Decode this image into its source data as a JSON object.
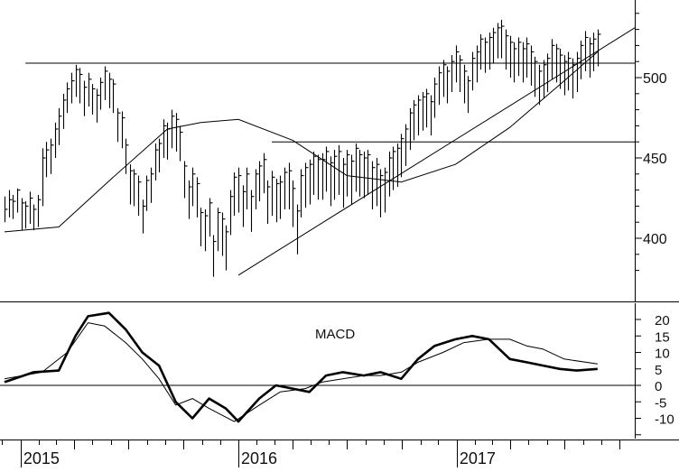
{
  "chart_data": [
    {
      "type": "ohlc",
      "title": "",
      "xlabel": "",
      "ylabel": "",
      "x_tick_labels": [
        "2015",
        "2016",
        "2017"
      ],
      "y_ticks": [
        400,
        450,
        500
      ],
      "y_tick_labels": [
        "400",
        "450",
        "500"
      ],
      "ylim": [
        360,
        550
      ],
      "grid": false,
      "series": [
        {
          "kind": "weekly_bars",
          "x": [
            "2014-12-05",
            "2014-12-12",
            "2014-12-19",
            "2014-12-26",
            "2015-01-02",
            "2015-01-09",
            "2015-01-16",
            "2015-01-23",
            "2015-01-30",
            "2015-02-06",
            "2015-02-13",
            "2015-02-20",
            "2015-02-27",
            "2015-03-06",
            "2015-03-13",
            "2015-03-20",
            "2015-03-27",
            "2015-04-03",
            "2015-04-10",
            "2015-04-17",
            "2015-04-24",
            "2015-05-01",
            "2015-05-08",
            "2015-05-15",
            "2015-05-22",
            "2015-05-29",
            "2015-06-05",
            "2015-06-12",
            "2015-06-19",
            "2015-06-26",
            "2015-07-03",
            "2015-07-10",
            "2015-07-17",
            "2015-07-24",
            "2015-07-31",
            "2015-08-07",
            "2015-08-14",
            "2015-08-21",
            "2015-08-28",
            "2015-09-04",
            "2015-09-11",
            "2015-09-18",
            "2015-09-25",
            "2015-10-02",
            "2015-10-09",
            "2015-10-16",
            "2015-10-23",
            "2015-10-30",
            "2015-11-06",
            "2015-11-13",
            "2015-11-20",
            "2015-11-27",
            "2015-12-04",
            "2015-12-11",
            "2015-12-18",
            "2015-12-25",
            "2016-01-01",
            "2016-01-08",
            "2016-01-15",
            "2016-01-22",
            "2016-01-29",
            "2016-02-05",
            "2016-02-12",
            "2016-02-19",
            "2016-02-26",
            "2016-03-04",
            "2016-03-11",
            "2016-03-18",
            "2016-03-25",
            "2016-04-01",
            "2016-04-08",
            "2016-04-15",
            "2016-04-22",
            "2016-04-29",
            "2016-05-06",
            "2016-05-13",
            "2016-05-20",
            "2016-05-27",
            "2016-06-03",
            "2016-06-10",
            "2016-06-17",
            "2016-06-24",
            "2016-07-01",
            "2016-07-08",
            "2016-07-15",
            "2016-07-22",
            "2016-07-29",
            "2016-08-05",
            "2016-08-12",
            "2016-08-19",
            "2016-08-26",
            "2016-09-02",
            "2016-09-09",
            "2016-09-16",
            "2016-09-23",
            "2016-09-30",
            "2016-10-07",
            "2016-10-14",
            "2016-10-21",
            "2016-10-28",
            "2016-11-04",
            "2016-11-11",
            "2016-11-18",
            "2016-11-25",
            "2016-12-02",
            "2016-12-09",
            "2016-12-16",
            "2016-12-23",
            "2016-12-30",
            "2017-01-06",
            "2017-01-13",
            "2017-01-20",
            "2017-01-27",
            "2017-02-03",
            "2017-02-10",
            "2017-02-17",
            "2017-02-24",
            "2017-03-03",
            "2017-03-10",
            "2017-03-17",
            "2017-03-24",
            "2017-03-31",
            "2017-04-07",
            "2017-04-14",
            "2017-04-21",
            "2017-04-28",
            "2017-05-05",
            "2017-05-12",
            "2017-05-19",
            "2017-05-26",
            "2017-06-02",
            "2017-06-09",
            "2017-06-16",
            "2017-06-23",
            "2017-06-30",
            "2017-07-07",
            "2017-07-14",
            "2017-07-21",
            "2017-07-28",
            "2017-08-04",
            "2017-08-11",
            "2017-08-18",
            "2017-08-25"
          ],
          "close": [
            418,
            424,
            423,
            430,
            422,
            420,
            425,
            418,
            424,
            450,
            455,
            458,
            468,
            476,
            486,
            493,
            498,
            505,
            502,
            494,
            499,
            493,
            489,
            497,
            504,
            499,
            496,
            478,
            475,
            458,
            442,
            440,
            435,
            420,
            436,
            440,
            455,
            459,
            470,
            468,
            476,
            474,
            466,
            445,
            432,
            440,
            434,
            416,
            414,
            422,
            398,
            416,
            412,
            404,
            426,
            438,
            439,
            429,
            440,
            426,
            440,
            445,
            449,
            432,
            438,
            434,
            435,
            441,
            442,
            431,
            417,
            439,
            444,
            446,
            451,
            449,
            449,
            454,
            447,
            451,
            454,
            446,
            452,
            448,
            456,
            452,
            450,
            452,
            444,
            446,
            439,
            441,
            450,
            454,
            456,
            462,
            468,
            478,
            483,
            486,
            488,
            490,
            485,
            496,
            503,
            508,
            504,
            510,
            516,
            511,
            504,
            498,
            512,
            516,
            524,
            522,
            525,
            528,
            531,
            532,
            526,
            522,
            518,
            522,
            518,
            521,
            516,
            510,
            504,
            508,
            512,
            520,
            518,
            514,
            510,
            512,
            508,
            512,
            520,
            525,
            521,
            524,
            527
          ],
          "high": [
            426,
            430,
            427,
            431,
            425,
            423,
            429,
            421,
            427,
            456,
            460,
            462,
            472,
            481,
            490,
            497,
            503,
            508,
            506,
            498,
            503,
            496,
            493,
            500,
            507,
            503,
            499,
            481,
            479,
            462,
            446,
            443,
            439,
            424,
            439,
            444,
            459,
            462,
            474,
            472,
            480,
            478,
            470,
            448,
            436,
            444,
            438,
            419,
            418,
            425,
            402,
            419,
            416,
            408,
            430,
            441,
            444,
            433,
            444,
            430,
            443,
            448,
            453,
            436,
            442,
            437,
            439,
            444,
            447,
            436,
            421,
            443,
            447,
            449,
            454,
            452,
            453,
            457,
            451,
            455,
            458,
            450,
            455,
            452,
            459,
            455,
            454,
            455,
            448,
            450,
            443,
            444,
            454,
            457,
            459,
            465,
            471,
            481,
            486,
            489,
            491,
            493,
            489,
            500,
            507,
            511,
            507,
            514,
            520,
            514,
            508,
            501,
            516,
            520,
            527,
            525,
            528,
            531,
            534,
            536,
            530,
            526,
            522,
            525,
            522,
            525,
            520,
            513,
            508,
            511,
            515,
            524,
            521,
            518,
            514,
            516,
            512,
            516,
            523,
            529,
            525,
            528,
            530
          ],
          "low": [
            410,
            413,
            412,
            416,
            405,
            406,
            409,
            405,
            407,
            420,
            438,
            440,
            450,
            458,
            468,
            478,
            484,
            488,
            484,
            476,
            482,
            477,
            472,
            480,
            486,
            481,
            478,
            460,
            456,
            440,
            421,
            420,
            414,
            403,
            417,
            422,
            436,
            441,
            450,
            449,
            456,
            454,
            448,
            425,
            412,
            420,
            413,
            395,
            392,
            401,
            376,
            392,
            389,
            380,
            402,
            414,
            416,
            407,
            418,
            404,
            418,
            423,
            428,
            409,
            414,
            410,
            412,
            418,
            418,
            407,
            390,
            413,
            419,
            421,
            427,
            424,
            424,
            429,
            420,
            424,
            427,
            419,
            426,
            421,
            429,
            426,
            425,
            427,
            418,
            420,
            413,
            416,
            426,
            430,
            432,
            438,
            445,
            455,
            461,
            464,
            467,
            469,
            464,
            475,
            483,
            488,
            484,
            491,
            497,
            491,
            484,
            478,
            492,
            497,
            505,
            503,
            505,
            509,
            512,
            512,
            505,
            500,
            497,
            501,
            497,
            500,
            495,
            488,
            483,
            487,
            491,
            499,
            497,
            493,
            489,
            492,
            487,
            491,
            499,
            504,
            500,
            504,
            507
          ]
        },
        {
          "name": "",
          "kind": "moving_average",
          "x": [
            "2014-12-05",
            "2015-03-06",
            "2015-06-05",
            "2015-09-04",
            "2015-10-30",
            "2016-01-01",
            "2016-04-01",
            "2016-07-01",
            "2016-09-30",
            "2016-12-30",
            "2017-03-31",
            "2017-06-30",
            "2017-08-25"
          ],
          "values": [
            404,
            407,
            438,
            468,
            472,
            474,
            461,
            439,
            435,
            446,
            469,
            498,
            516
          ]
        }
      ],
      "annotations": [
        {
          "kind": "horizontal_line",
          "value": 509,
          "from": "2015-01-09",
          "to": "2017-08-25"
        },
        {
          "kind": "horizontal_line",
          "value": 460,
          "from": "2016-02-26",
          "to": "2017-08-25"
        },
        {
          "kind": "trendline",
          "from": [
            "2016-01-01",
            377
          ],
          "to": [
            "2017-08-25",
            531
          ]
        }
      ]
    },
    {
      "type": "line",
      "title": "",
      "label": "MACD",
      "xlabel": "",
      "ylabel": "",
      "x_tick_labels": [
        "2015",
        "2016",
        "2017"
      ],
      "y_ticks": [
        -10,
        -5,
        0,
        5,
        10,
        15,
        20
      ],
      "y_tick_labels": [
        "-10",
        "-5",
        "0",
        "5",
        "10",
        "15",
        "20"
      ],
      "ylim": [
        -16,
        25
      ],
      "zero_line": true,
      "grid": false,
      "series": [
        {
          "name": "",
          "style": "thick",
          "x": [
            "2014-12-05",
            "2015-01-23",
            "2015-03-06",
            "2015-04-03",
            "2015-04-24",
            "2015-05-29",
            "2015-06-26",
            "2015-07-24",
            "2015-08-21",
            "2015-09-18",
            "2015-10-16",
            "2015-11-13",
            "2015-12-11",
            "2016-01-01",
            "2016-02-05",
            "2016-03-04",
            "2016-04-01",
            "2016-04-29",
            "2016-05-27",
            "2016-06-24",
            "2016-07-29",
            "2016-08-26",
            "2016-09-30",
            "2016-10-28",
            "2016-11-25",
            "2016-12-30",
            "2017-01-27",
            "2017-02-24",
            "2017-03-31",
            "2017-04-28",
            "2017-05-26",
            "2017-06-23",
            "2017-07-21",
            "2017-08-25"
          ],
          "values": [
            1,
            4,
            4.5,
            15,
            21,
            22,
            17,
            10,
            6,
            -5,
            -10,
            -4,
            -7,
            -11,
            -4,
            0,
            -1,
            -2,
            3,
            4,
            3,
            4,
            2,
            8,
            12,
            14,
            15,
            14,
            8,
            7,
            6,
            5,
            4.5,
            5
          ]
        },
        {
          "name": "",
          "style": "thin",
          "x": [
            "2014-12-05",
            "2015-02-06",
            "2015-03-20",
            "2015-04-24",
            "2015-05-22",
            "2015-06-26",
            "2015-07-24",
            "2015-08-21",
            "2015-09-18",
            "2015-10-16",
            "2015-11-13",
            "2015-12-25",
            "2016-02-05",
            "2016-03-11",
            "2016-04-22",
            "2016-05-20",
            "2016-06-24",
            "2016-07-29",
            "2016-08-26",
            "2016-09-30",
            "2016-10-28",
            "2016-12-09",
            "2017-01-13",
            "2017-02-24",
            "2017-03-31",
            "2017-04-28",
            "2017-05-26",
            "2017-06-30",
            "2017-08-25"
          ],
          "values": [
            2,
            4,
            10,
            19,
            18,
            13,
            8,
            2,
            -6,
            -4,
            -7,
            -11,
            -6,
            -2,
            -1,
            1,
            2,
            3,
            3,
            4,
            7,
            10,
            13,
            14,
            14,
            12,
            11,
            8,
            6.5
          ]
        }
      ]
    }
  ]
}
